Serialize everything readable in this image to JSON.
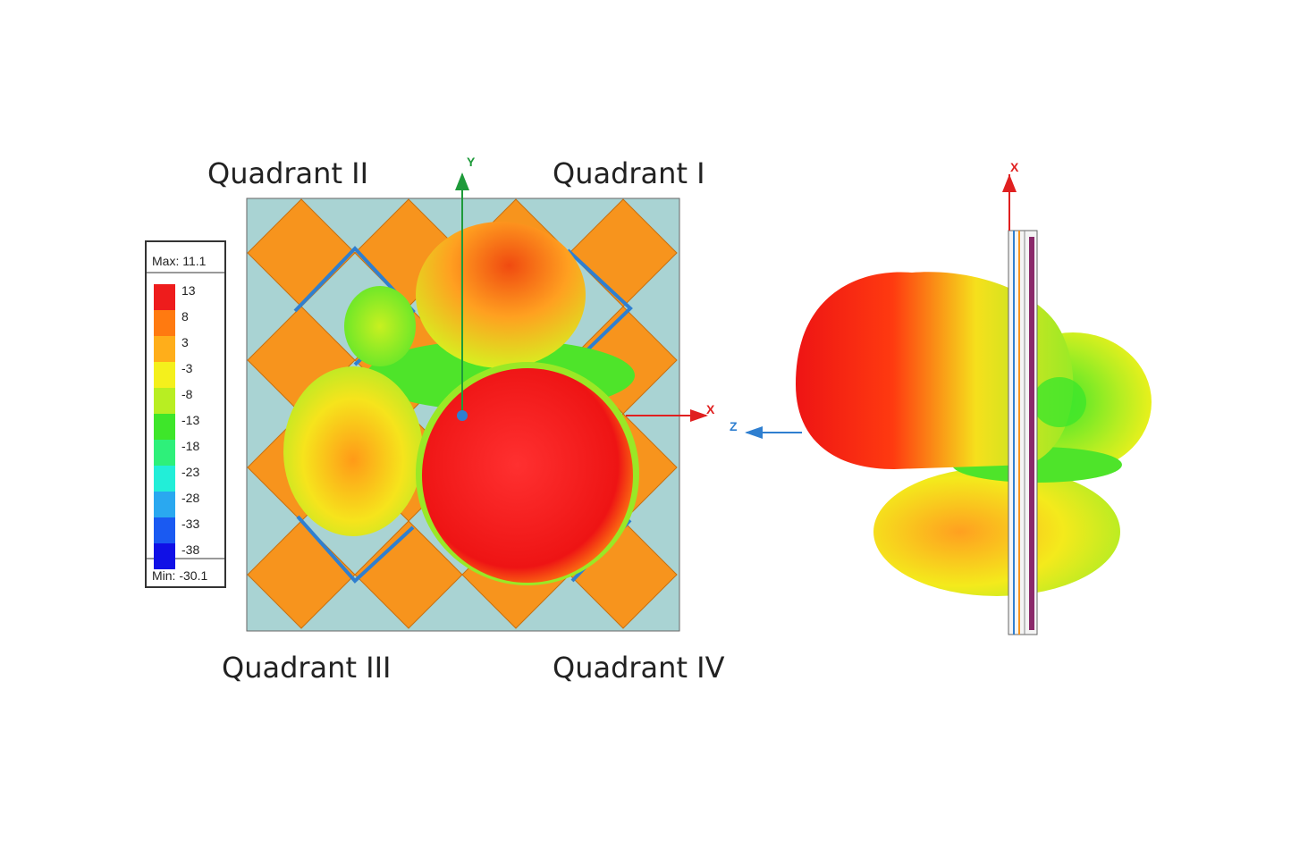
{
  "quadrants": {
    "q2": "Quadrant II",
    "q1": "Quadrant I",
    "q3": "Quadrant III",
    "q4": "Quadrant IV"
  },
  "legend": {
    "max": "Max: 11.1",
    "min": "Min: -30.1",
    "levels": [
      {
        "label": "13",
        "color": "#ee1c1c"
      },
      {
        "label": "8",
        "color": "#ff7a10"
      },
      {
        "label": "3",
        "color": "#ffae1a"
      },
      {
        "label": "-3",
        "color": "#f4f01c"
      },
      {
        "label": "-8",
        "color": "#b8ee22"
      },
      {
        "label": "-13",
        "color": "#3ee62a"
      },
      {
        "label": "-18",
        "color": "#2ef07a"
      },
      {
        "label": "-23",
        "color": "#22eed8"
      },
      {
        "label": "-28",
        "color": "#2aa8f0"
      },
      {
        "label": "-33",
        "color": "#1a5af2"
      },
      {
        "label": "-38",
        "color": "#1010e6"
      }
    ]
  },
  "axes": {
    "left": {
      "y": "Y",
      "x": "X"
    },
    "right": {
      "x": "X",
      "z": "Z"
    }
  }
}
